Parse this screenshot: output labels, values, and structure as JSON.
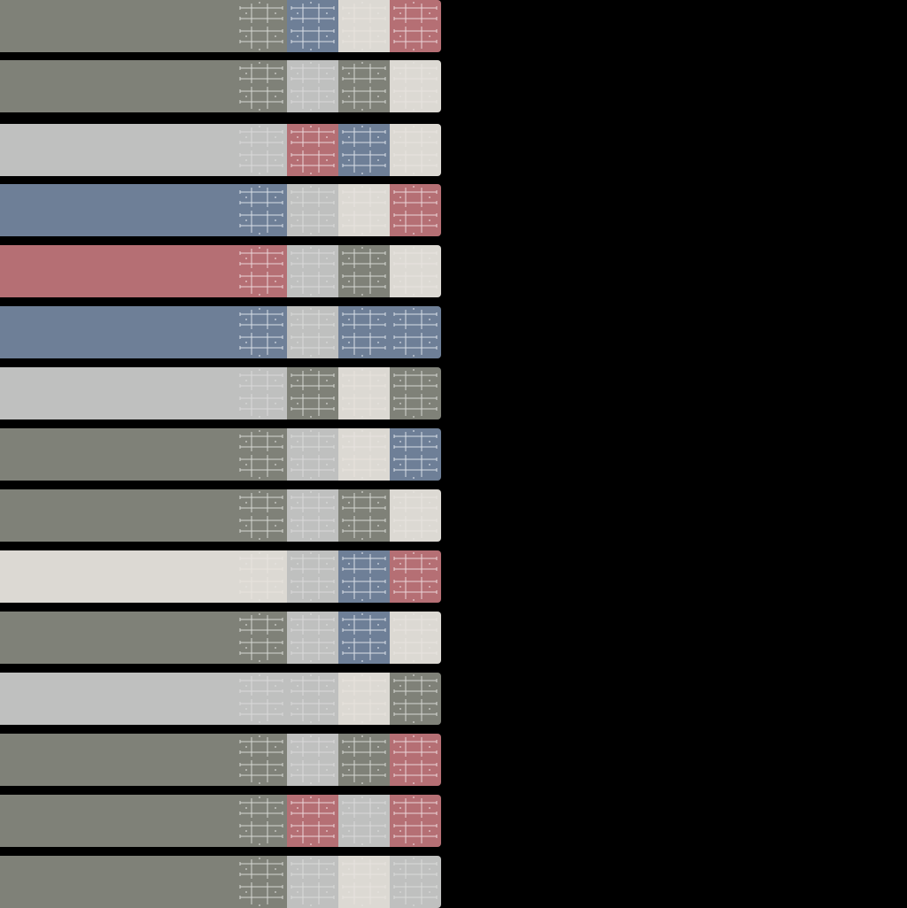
{
  "palette": {
    "olive": "#7f8178",
    "silver": "#bfc0bf",
    "blue": "#6e7f97",
    "rose": "#b56f74",
    "cream": "#dcd9d3"
  },
  "pattern_colors": {
    "olive": "#e6e6e2",
    "silver": "#dededd",
    "blue": "#ecf0f5",
    "rose": "#f6e8ea",
    "cream": "#e9e6e1"
  },
  "rows": [
    {
      "lead": "olive",
      "cells": [
        "olive",
        "blue",
        "cream",
        "rose"
      ]
    },
    {
      "lead": "olive",
      "cells": [
        "olive",
        "silver",
        "olive",
        "cream"
      ]
    },
    {
      "lead": "silver",
      "cells": [
        "silver",
        "rose",
        "blue",
        "cream"
      ]
    },
    {
      "lead": "blue",
      "cells": [
        "blue",
        "silver",
        "cream",
        "rose"
      ]
    },
    {
      "lead": "rose",
      "cells": [
        "rose",
        "silver",
        "olive",
        "cream"
      ]
    },
    {
      "lead": "blue",
      "cells": [
        "blue",
        "silver",
        "blue",
        "blue"
      ]
    },
    {
      "lead": "silver",
      "cells": [
        "silver",
        "olive",
        "cream",
        "olive"
      ]
    },
    {
      "lead": "olive",
      "cells": [
        "olive",
        "silver",
        "cream",
        "blue"
      ]
    },
    {
      "lead": "olive",
      "cells": [
        "olive",
        "silver",
        "olive",
        "cream"
      ]
    },
    {
      "lead": "cream",
      "cells": [
        "cream",
        "silver",
        "blue",
        "rose"
      ]
    },
    {
      "lead": "olive",
      "cells": [
        "olive",
        "silver",
        "blue",
        "cream"
      ]
    },
    {
      "lead": "silver",
      "cells": [
        "silver",
        "silver",
        "cream",
        "olive"
      ]
    },
    {
      "lead": "olive",
      "cells": [
        "olive",
        "silver",
        "olive",
        "rose"
      ]
    },
    {
      "lead": "olive",
      "cells": [
        "olive",
        "rose",
        "silver",
        "rose"
      ]
    },
    {
      "lead": "olive",
      "cells": [
        "olive",
        "silver",
        "cream",
        "silver"
      ]
    }
  ]
}
